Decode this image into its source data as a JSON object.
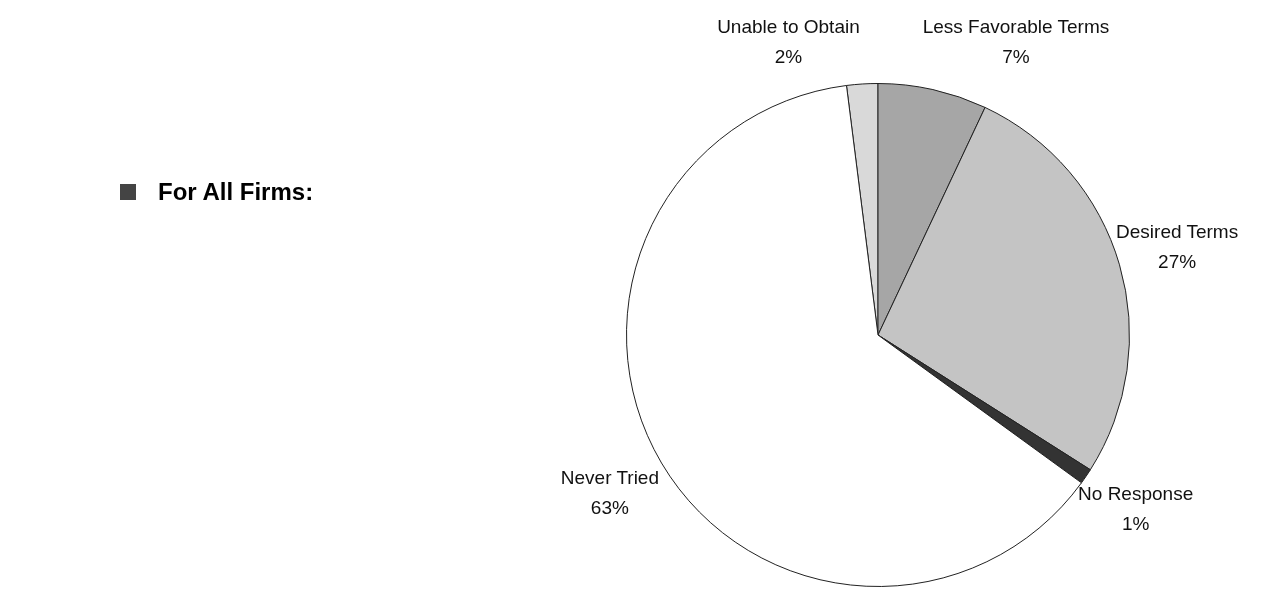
{
  "chart_data": {
    "type": "pie",
    "title": "For All Firms:",
    "categories": [
      "Unable to Obtain",
      "Less Favorable Terms",
      "Desired Terms",
      "No Response",
      "Never Tried"
    ],
    "values": [
      2,
      7,
      27,
      1,
      63
    ],
    "value_labels": [
      "2%",
      "7%",
      "27%",
      "1%",
      "63%"
    ],
    "colors": [
      "#d9d9d9",
      "#a6a6a6",
      "#c4c4c4",
      "#333333",
      "#ffffff"
    ],
    "legend": false
  }
}
